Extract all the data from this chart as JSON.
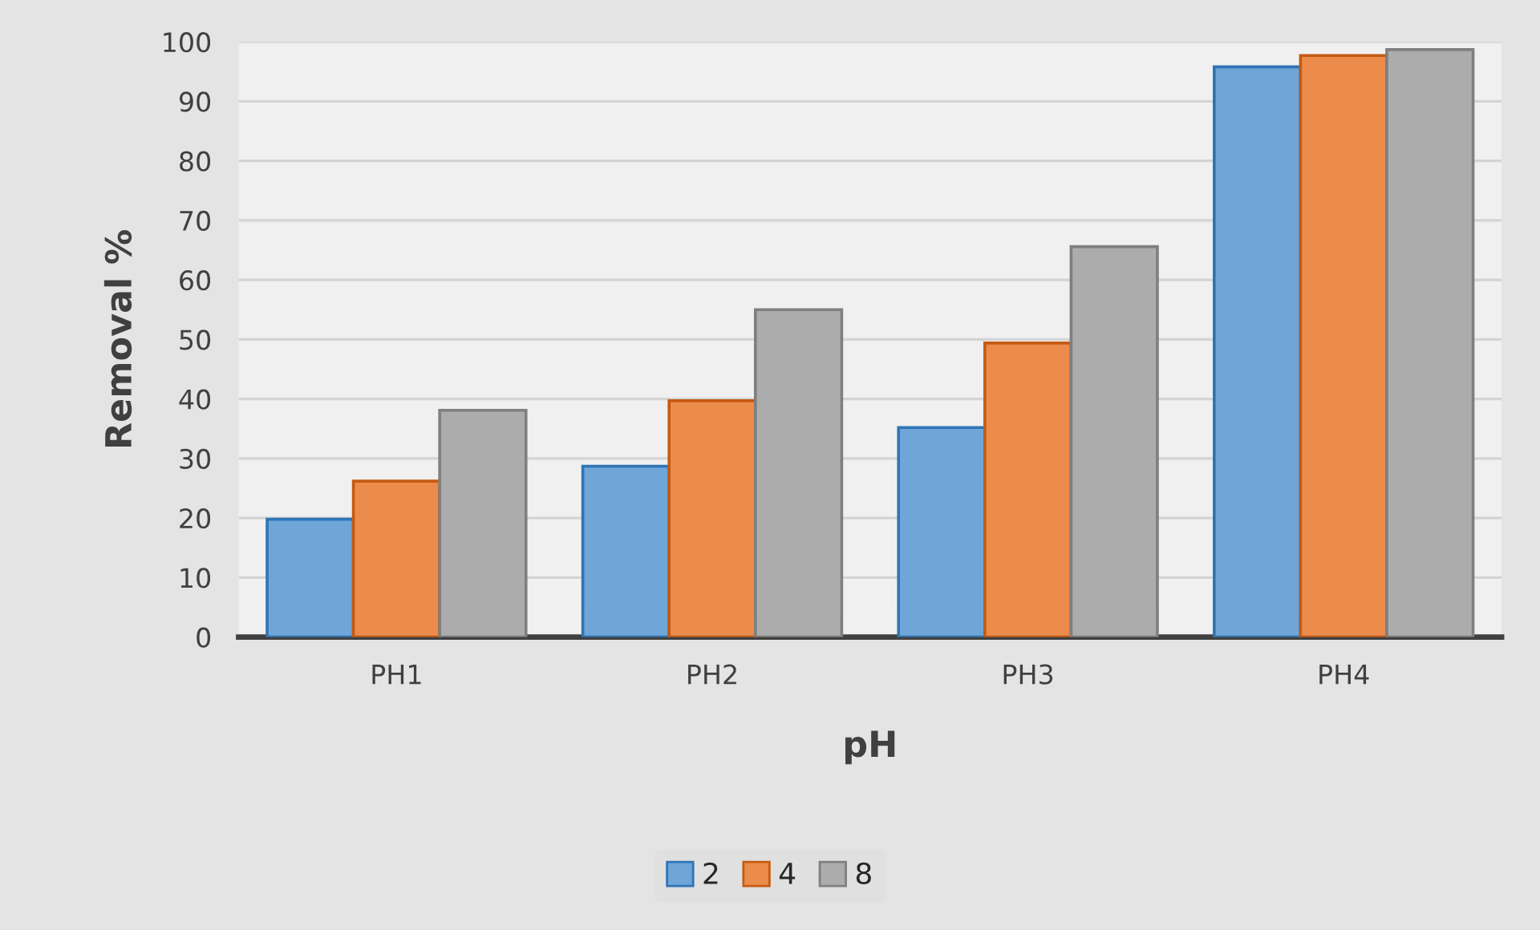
{
  "chart_data": {
    "type": "bar",
    "xlabel": "pH",
    "ylabel": "Removal %",
    "categories": [
      "PH1",
      "PH2",
      "PH3",
      "PH4"
    ],
    "series": [
      {
        "name": "2",
        "color": "#6fa5d7",
        "values": [
          19.8,
          28.7,
          35.2,
          95.8
        ]
      },
      {
        "name": "4",
        "color": "#ec8c4c",
        "values": [
          26.2,
          39.7,
          49.4,
          97.7
        ]
      },
      {
        "name": "8",
        "color": "#acacac",
        "values": [
          38.1,
          55.0,
          65.6,
          98.7
        ]
      }
    ],
    "ylim": [
      0,
      100
    ],
    "yticks": [
      0,
      10,
      20,
      30,
      40,
      50,
      60,
      70,
      80,
      90,
      100
    ],
    "grid": "y",
    "legend": "bottom"
  }
}
